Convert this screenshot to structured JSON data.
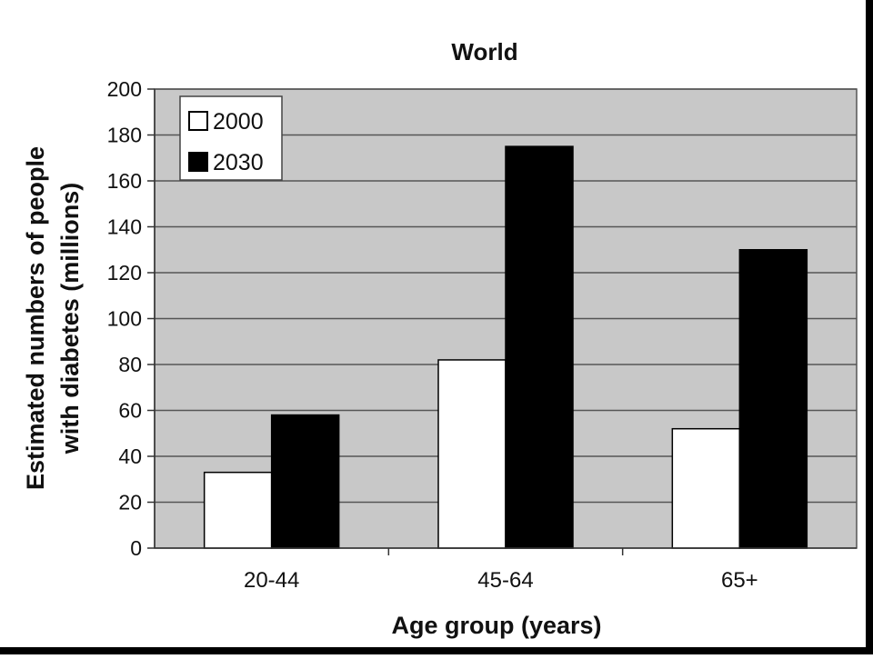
{
  "chart_data": {
    "type": "bar",
    "title": "World",
    "xlabel": "Age group (years)",
    "ylabel_lines": [
      "Estimated numbers of people",
      "with diabetes (millions)"
    ],
    "categories": [
      "20-44",
      "45-64",
      "65+"
    ],
    "series": [
      {
        "name": "2000",
        "color": "#ffffff",
        "values": [
          33,
          82,
          52
        ]
      },
      {
        "name": "2030",
        "color": "#000000",
        "values": [
          58,
          175,
          130
        ]
      }
    ],
    "ylim": [
      0,
      200
    ],
    "yticks": [
      0,
      20,
      40,
      60,
      80,
      100,
      120,
      140,
      160,
      180,
      200
    ],
    "grid": true,
    "legend_position": "top-left",
    "plot_background": "#c8c8c8"
  }
}
